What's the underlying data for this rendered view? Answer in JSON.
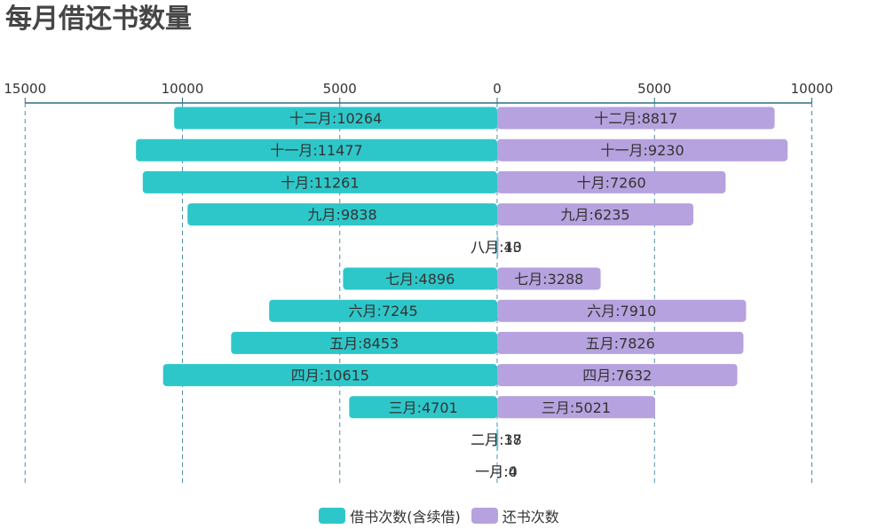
{
  "title": "每月借还书数量",
  "legend": [
    {
      "name": "借书次数(含续借)",
      "color": "#2ec7c9"
    },
    {
      "name": "还书次数",
      "color": "#b6a2de"
    }
  ],
  "chart_data": {
    "type": "bar",
    "orientation": "horizontal-butterfly",
    "title": "每月借还书数量",
    "categories": [
      "十二月",
      "十一月",
      "十月",
      "九月",
      "八月",
      "七月",
      "六月",
      "五月",
      "四月",
      "三月",
      "二月",
      "一月"
    ],
    "series": [
      {
        "name": "借书次数(含续借)",
        "color": "#2ec7c9",
        "side": "left",
        "values": [
          10264,
          11477,
          11261,
          9838,
          13,
          4896,
          7245,
          8453,
          10615,
          4701,
          18,
          0
        ]
      },
      {
        "name": "还书次数",
        "color": "#b6a2de",
        "side": "right",
        "values": [
          8817,
          9230,
          7260,
          6235,
          40,
          3288,
          7910,
          7826,
          7632,
          5021,
          37,
          4
        ]
      }
    ],
    "ticks": [
      "15000",
      "10000",
      "5000",
      "0",
      "5000",
      "10000"
    ],
    "xlim_left": [
      0,
      15000
    ],
    "xlim_right": [
      0,
      10000
    ],
    "grid": true,
    "axis_position": "top",
    "legend_position": "bottom-center"
  }
}
